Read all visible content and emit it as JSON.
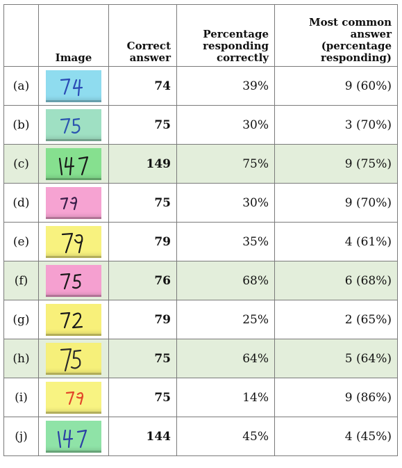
{
  "columns": {
    "label": "",
    "image": "Image",
    "correct_line1": "Correct",
    "correct_line2": "answer",
    "pct_line1": "Percentage",
    "pct_line2": "responding",
    "pct_line3": "correctly",
    "common_line1": "Most common",
    "common_line2": "answer",
    "common_line3": "(percentage",
    "common_line4": "responding)"
  },
  "rows": [
    {
      "label": "(a)",
      "note_color": "#8fdcef",
      "ink_color": "#2a4bb5",
      "correct": "74",
      "pct": "39%",
      "common": "9 (60%)",
      "shaded": false
    },
    {
      "label": "(b)",
      "note_color": "#9fe0c3",
      "ink_color": "#2c55b0",
      "correct": "75",
      "pct": "30%",
      "common": "3 (70%)",
      "shaded": false
    },
    {
      "label": "(c)",
      "note_color": "#86e08f",
      "ink_color": "#1a1a1a",
      "correct": "149",
      "pct": "75%",
      "common": "9 (75%)",
      "shaded": true
    },
    {
      "label": "(d)",
      "note_color": "#f6a3d2",
      "ink_color": "#3a1f4a",
      "correct": "75",
      "pct": "30%",
      "common": "9 (70%)",
      "shaded": false
    },
    {
      "label": "(e)",
      "note_color": "#f8f27f",
      "ink_color": "#1a1a1a",
      "correct": "79",
      "pct": "35%",
      "common": "4 (61%)",
      "shaded": false
    },
    {
      "label": "(f)",
      "note_color": "#f5a0d0",
      "ink_color": "#1a1a1a",
      "correct": "76",
      "pct": "68%",
      "common": "6 (68%)",
      "shaded": true
    },
    {
      "label": "(g)",
      "note_color": "#f8f07a",
      "ink_color": "#1a1a1a",
      "correct": "79",
      "pct": "25%",
      "common": "2 (65%)",
      "shaded": false
    },
    {
      "label": "(h)",
      "note_color": "#f6f07a",
      "ink_color": "#2a2a2a",
      "correct": "75",
      "pct": "64%",
      "common": "5 (64%)",
      "shaded": true
    },
    {
      "label": "(i)",
      "note_color": "#f8f382",
      "ink_color": "#e2462a",
      "correct": "75",
      "pct": "14%",
      "common": "9 (86%)",
      "shaded": false
    },
    {
      "label": "(j)",
      "note_color": "#8fe3a7",
      "ink_color": "#2b3fa5",
      "correct": "144",
      "pct": "45%",
      "common": "4 (45%)",
      "shaded": false
    }
  ]
}
